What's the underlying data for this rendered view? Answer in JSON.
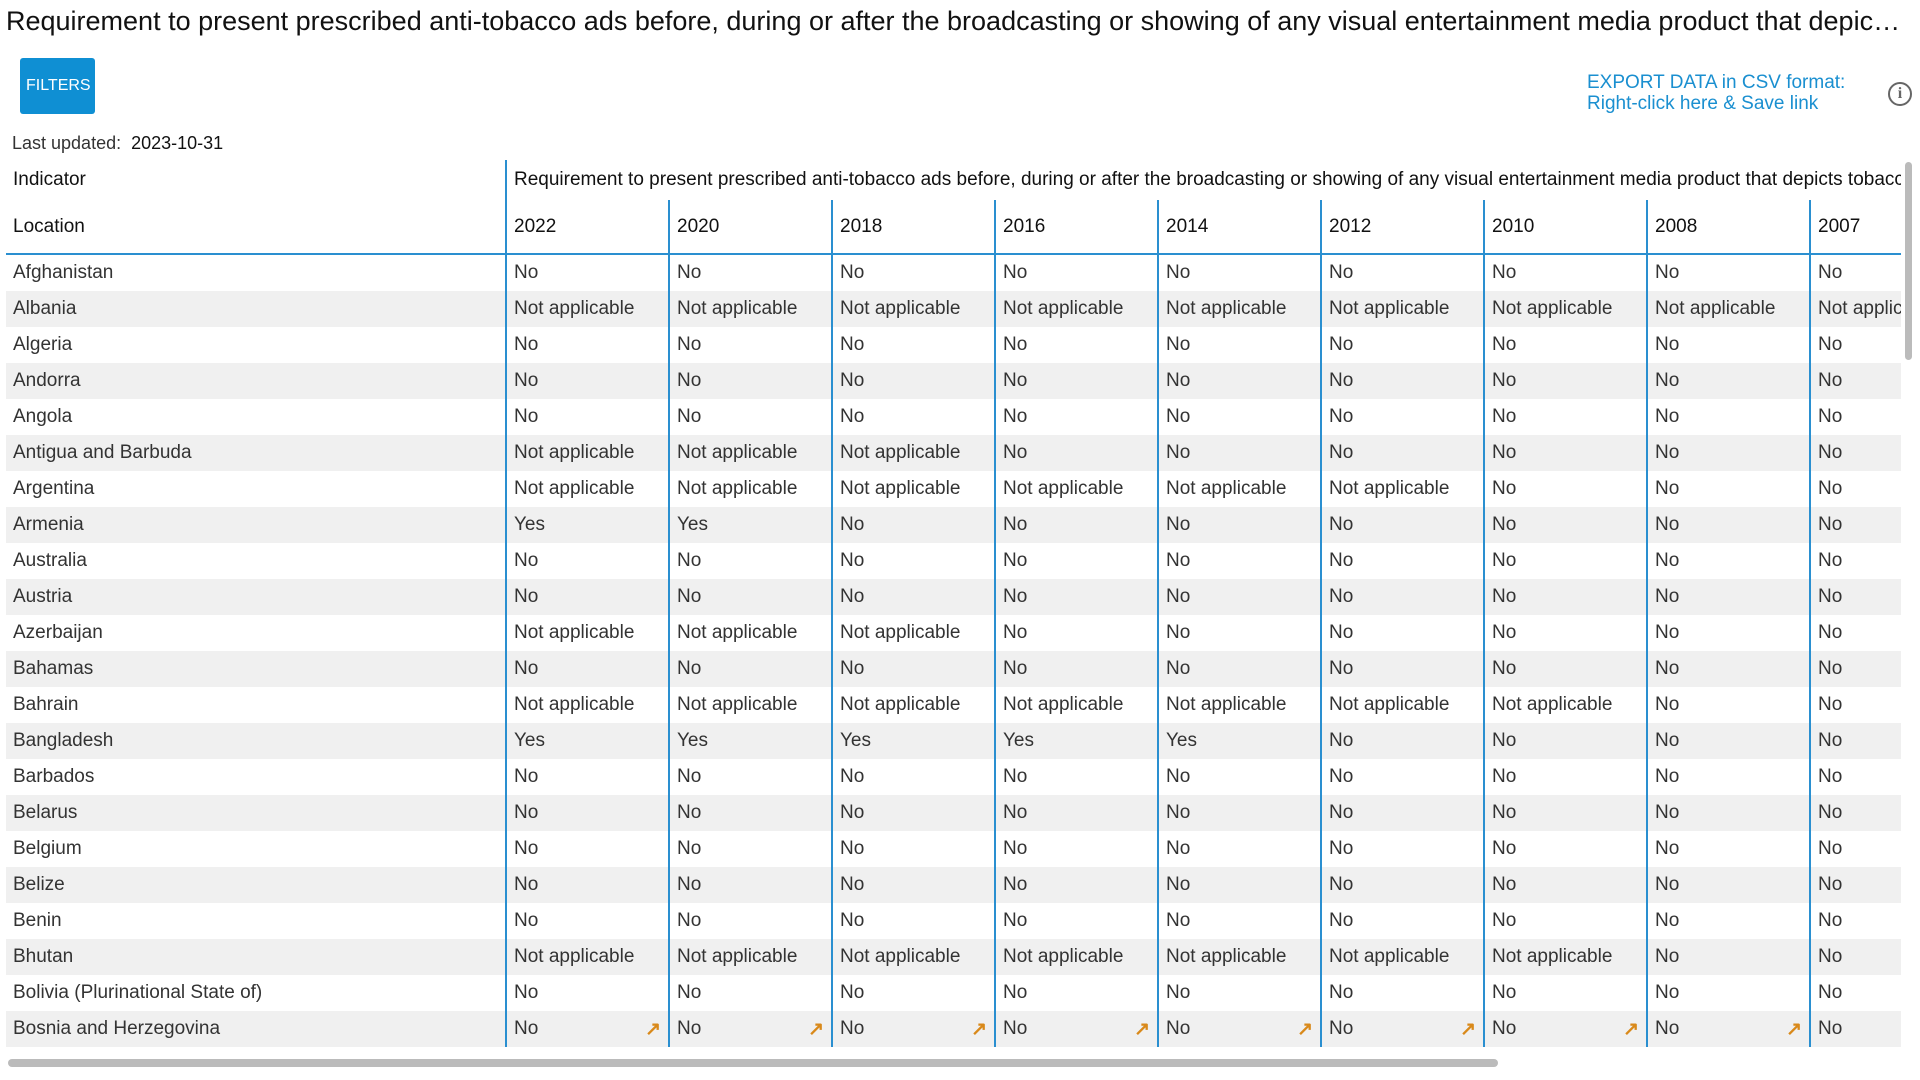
{
  "header": {
    "title": "Requirement to present prescribed anti-tobacco ads before, during or after the broadcasting or showing of any visual entertainment media product that depicts tobacco products, use or images",
    "filters": "FILTERS",
    "export_line1": "EXPORT DATA in CSV format:",
    "export_line2": "Right-click here & Save link",
    "last_updated_label": "Last updated:",
    "last_updated": "2023-10-31"
  },
  "table": {
    "indicator_label": "Indicator",
    "indicator": "Requirement to present prescribed anti-tobacco ads before, during or after the broadcasting or showing of any visual entertainment media product that depicts tobacco products, use or images",
    "location_label": "Location",
    "years": [
      "2022",
      "2020",
      "2018",
      "2016",
      "2014",
      "2012",
      "2010",
      "2008",
      "2007"
    ],
    "rows": [
      [
        "Afghanistan",
        "No",
        "No",
        "No",
        "No",
        "No",
        "No",
        "No",
        "No",
        "No"
      ],
      [
        "Albania",
        "Not applicable",
        "Not applicable",
        "Not applicable",
        "Not applicable",
        "Not applicable",
        "Not applicable",
        "Not applicable",
        "Not applicable",
        "Not applicable"
      ],
      [
        "Algeria",
        "No",
        "No",
        "No",
        "No",
        "No",
        "No",
        "No",
        "No",
        "No"
      ],
      [
        "Andorra",
        "No",
        "No",
        "No",
        "No",
        "No",
        "No",
        "No",
        "No",
        "No"
      ],
      [
        "Angola",
        "No",
        "No",
        "No",
        "No",
        "No",
        "No",
        "No",
        "No",
        "No"
      ],
      [
        "Antigua and Barbuda",
        "Not applicable",
        "Not applicable",
        "Not applicable",
        "No",
        "No",
        "No",
        "No",
        "No",
        "No"
      ],
      [
        "Argentina",
        "Not applicable",
        "Not applicable",
        "Not applicable",
        "Not applicable",
        "Not applicable",
        "Not applicable",
        "No",
        "No",
        "No"
      ],
      [
        "Armenia",
        "Yes",
        "Yes",
        "No",
        "No",
        "No",
        "No",
        "No",
        "No",
        "No"
      ],
      [
        "Australia",
        "No",
        "No",
        "No",
        "No",
        "No",
        "No",
        "No",
        "No",
        "No"
      ],
      [
        "Austria",
        "No",
        "No",
        "No",
        "No",
        "No",
        "No",
        "No",
        "No",
        "No"
      ],
      [
        "Azerbaijan",
        "Not applicable",
        "Not applicable",
        "Not applicable",
        "No",
        "No",
        "No",
        "No",
        "No",
        "No"
      ],
      [
        "Bahamas",
        "No",
        "No",
        "No",
        "No",
        "No",
        "No",
        "No",
        "No",
        "No"
      ],
      [
        "Bahrain",
        "Not applicable",
        "Not applicable",
        "Not applicable",
        "Not applicable",
        "Not applicable",
        "Not applicable",
        "Not applicable",
        "No",
        "No"
      ],
      [
        "Bangladesh",
        "Yes",
        "Yes",
        "Yes",
        "Yes",
        "Yes",
        "No",
        "No",
        "No",
        "No"
      ],
      [
        "Barbados",
        "No",
        "No",
        "No",
        "No",
        "No",
        "No",
        "No",
        "No",
        "No"
      ],
      [
        "Belarus",
        "No",
        "No",
        "No",
        "No",
        "No",
        "No",
        "No",
        "No",
        "No"
      ],
      [
        "Belgium",
        "No",
        "No",
        "No",
        "No",
        "No",
        "No",
        "No",
        "No",
        "No"
      ],
      [
        "Belize",
        "No",
        "No",
        "No",
        "No",
        "No",
        "No",
        "No",
        "No",
        "No"
      ],
      [
        "Benin",
        "No",
        "No",
        "No",
        "No",
        "No",
        "No",
        "No",
        "No",
        "No"
      ],
      [
        "Bhutan",
        "Not applicable",
        "Not applicable",
        "Not applicable",
        "Not applicable",
        "Not applicable",
        "Not applicable",
        "Not applicable",
        "No",
        "No"
      ],
      [
        "Bolivia (Plurinational State of)",
        "No",
        "No",
        "No",
        "No",
        "No",
        "No",
        "No",
        "No",
        "No"
      ],
      [
        "Bosnia and Herzegovina",
        "No",
        "No",
        "No",
        "No",
        "No",
        "No",
        "No",
        "No",
        "No"
      ]
    ]
  }
}
